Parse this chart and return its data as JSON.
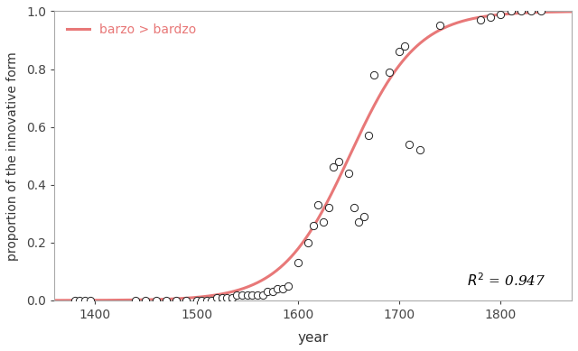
{
  "scatter_x": [
    1380,
    1385,
    1390,
    1395,
    1440,
    1450,
    1460,
    1470,
    1480,
    1490,
    1500,
    1505,
    1510,
    1515,
    1520,
    1525,
    1530,
    1535,
    1540,
    1545,
    1550,
    1555,
    1560,
    1565,
    1570,
    1575,
    1580,
    1585,
    1590,
    1600,
    1610,
    1615,
    1620,
    1625,
    1630,
    1635,
    1640,
    1650,
    1655,
    1660,
    1665,
    1670,
    1675,
    1690,
    1700,
    1705,
    1710,
    1720,
    1740,
    1780,
    1790,
    1800,
    1810,
    1820,
    1830,
    1840
  ],
  "scatter_y": [
    0.0,
    0.0,
    0.0,
    0.0,
    0.0,
    0.0,
    0.0,
    0.0,
    0.0,
    0.0,
    0.0,
    0.0,
    0.0,
    0.0,
    0.01,
    0.01,
    0.01,
    0.01,
    0.02,
    0.02,
    0.02,
    0.02,
    0.02,
    0.02,
    0.03,
    0.03,
    0.04,
    0.04,
    0.05,
    0.13,
    0.2,
    0.26,
    0.33,
    0.27,
    0.32,
    0.46,
    0.48,
    0.44,
    0.32,
    0.27,
    0.29,
    0.57,
    0.78,
    0.79,
    0.86,
    0.88,
    0.54,
    0.52,
    0.95,
    0.97,
    0.98,
    0.99,
    1.0,
    1.0,
    1.0,
    1.0
  ],
  "logistic_midpoint": 1651,
  "logistic_k": 0.03,
  "xlim": [
    1360,
    1870
  ],
  "ylim": [
    0.0,
    1.0
  ],
  "xlabel": "year",
  "ylabel": "proportion of the innovative form",
  "legend_label": "barzo > bardzo",
  "r2_text": "$R^2$ = 0.947",
  "line_color": "#e87878",
  "scatter_facecolor": "white",
  "scatter_edgecolor": "#222222",
  "scatter_size": 35,
  "line_width": 2.2,
  "background_color": "#ffffff",
  "plot_bg_color": "#ffffff",
  "yticks": [
    0.0,
    0.2,
    0.4,
    0.6,
    0.8,
    1.0
  ],
  "xticks": [
    1400,
    1500,
    1600,
    1700,
    1800
  ],
  "spine_color": "#aaaaaa"
}
